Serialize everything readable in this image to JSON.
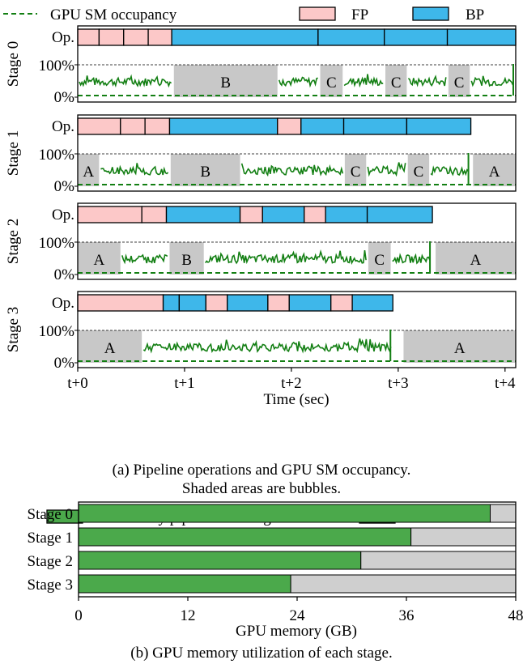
{
  "colors": {
    "fp": "#fcc8c8",
    "bp": "#3eb7ea",
    "bubble": "#c8c8c8",
    "occupancy": "#137f13",
    "utilized": "#4ba94b",
    "unutilized": "#cfcfcf"
  },
  "chart_data": [
    {
      "type": "timeline",
      "legend": {
        "placement": "top",
        "entries": [
          {
            "label": "GPU SM occupancy",
            "style": "dashed-line",
            "color": "#137f13"
          },
          {
            "label": "FP",
            "style": "box",
            "color": "#fcc8c8"
          },
          {
            "label": "BP",
            "style": "box",
            "color": "#3eb7ea"
          }
        ]
      },
      "xlabel": "Time (sec)",
      "xlim": [
        0,
        4.1
      ],
      "xticks": [
        0,
        1,
        2,
        3,
        4
      ],
      "xtick_labels": [
        "t+0",
        "t+1",
        "t+2",
        "t+3",
        "t+4"
      ],
      "op_row_label": "Op.",
      "occupancy_ticks": [
        "0%",
        "100%"
      ],
      "stages": [
        {
          "name": "Stage 0",
          "ops": [
            {
              "kind": "FP",
              "start": 0.0,
              "end": 0.2
            },
            {
              "kind": "FP",
              "start": 0.2,
              "end": 0.43
            },
            {
              "kind": "FP",
              "start": 0.43,
              "end": 0.66
            },
            {
              "kind": "FP",
              "start": 0.66,
              "end": 0.88
            },
            {
              "kind": "BP",
              "start": 0.88,
              "end": 2.25
            },
            {
              "kind": "BP",
              "start": 2.25,
              "end": 2.87
            },
            {
              "kind": "BP",
              "start": 2.87,
              "end": 3.46
            },
            {
              "kind": "BP",
              "start": 3.46,
              "end": 4.1
            }
          ],
          "bubbles": [
            {
              "label": "B",
              "start": 0.9,
              "end": 1.87
            },
            {
              "label": "C",
              "start": 2.27,
              "end": 2.48
            },
            {
              "label": "C",
              "start": 2.88,
              "end": 3.08
            },
            {
              "label": "C",
              "start": 3.47,
              "end": 3.67
            }
          ]
        },
        {
          "name": "Stage 1",
          "ops": [
            {
              "kind": "FP",
              "start": 0.0,
              "end": 0.4
            },
            {
              "kind": "FP",
              "start": 0.4,
              "end": 0.63
            },
            {
              "kind": "FP",
              "start": 0.63,
              "end": 0.86
            },
            {
              "kind": "BP",
              "start": 0.86,
              "end": 1.87
            },
            {
              "kind": "FP",
              "start": 1.87,
              "end": 2.09
            },
            {
              "kind": "BP",
              "start": 2.09,
              "end": 2.49
            },
            {
              "kind": "BP",
              "start": 2.49,
              "end": 3.08
            },
            {
              "kind": "BP",
              "start": 3.08,
              "end": 3.68
            }
          ],
          "bubbles": [
            {
              "label": "A",
              "start": 0.0,
              "end": 0.2
            },
            {
              "label": "B",
              "start": 0.87,
              "end": 1.52
            },
            {
              "label": "C",
              "start": 2.5,
              "end": 2.7
            },
            {
              "label": "C",
              "start": 3.09,
              "end": 3.29
            },
            {
              "label": "A",
              "start": 3.7,
              "end": 4.1
            }
          ]
        },
        {
          "name": "Stage 2",
          "ops": [
            {
              "kind": "FP",
              "start": 0.0,
              "end": 0.6
            },
            {
              "kind": "FP",
              "start": 0.6,
              "end": 0.83
            },
            {
              "kind": "BP",
              "start": 0.83,
              "end": 1.52
            },
            {
              "kind": "FP",
              "start": 1.52,
              "end": 1.73
            },
            {
              "kind": "BP",
              "start": 1.73,
              "end": 2.12
            },
            {
              "kind": "FP",
              "start": 2.12,
              "end": 2.32
            },
            {
              "kind": "BP",
              "start": 2.32,
              "end": 2.71
            },
            {
              "kind": "BP",
              "start": 2.71,
              "end": 3.32
            }
          ],
          "bubbles": [
            {
              "label": "A",
              "start": 0.0,
              "end": 0.4
            },
            {
              "label": "B",
              "start": 0.86,
              "end": 1.18
            },
            {
              "label": "C",
              "start": 2.72,
              "end": 2.93
            },
            {
              "label": "A",
              "start": 3.35,
              "end": 4.1
            }
          ]
        },
        {
          "name": "Stage 3",
          "ops": [
            {
              "kind": "FP",
              "start": 0.0,
              "end": 0.8
            },
            {
              "kind": "BP",
              "start": 0.8,
              "end": 0.95
            },
            {
              "kind": "BP",
              "start": 0.95,
              "end": 1.2
            },
            {
              "kind": "FP",
              "start": 1.2,
              "end": 1.4
            },
            {
              "kind": "BP",
              "start": 1.4,
              "end": 1.78
            },
            {
              "kind": "FP",
              "start": 1.78,
              "end": 1.98
            },
            {
              "kind": "BP",
              "start": 1.98,
              "end": 2.37
            },
            {
              "kind": "FP",
              "start": 2.37,
              "end": 2.57
            },
            {
              "kind": "BP",
              "start": 2.57,
              "end": 2.95
            }
          ],
          "bubbles": [
            {
              "label": "A",
              "start": 0.0,
              "end": 0.6
            },
            {
              "label": "A",
              "start": 3.05,
              "end": 4.1
            }
          ]
        }
      ]
    },
    {
      "type": "bar",
      "orientation": "horizontal",
      "stacked": true,
      "legend": {
        "placement": "top",
        "entries": [
          {
            "label": "Utilized by pipeline training",
            "color": "#4ba94b"
          },
          {
            "label": "Unutilized",
            "color": "#cfcfcf"
          }
        ]
      },
      "categories": [
        "Stage 0",
        "Stage 1",
        "Stage 2",
        "Stage 3"
      ],
      "series": [
        {
          "name": "Utilized by pipeline training",
          "values": [
            45.2,
            36.5,
            31.0,
            23.3
          ]
        },
        {
          "name": "Unutilized",
          "values": [
            2.8,
            11.5,
            17.0,
            24.7
          ]
        }
      ],
      "xlabel": "GPU memory (GB)",
      "xlim": [
        0,
        48
      ],
      "xticks": [
        0,
        12,
        24,
        36,
        48
      ]
    }
  ],
  "captions": {
    "a_line1": "(a) Pipeline operations and GPU SM occupancy.",
    "a_line2": "Shaded areas are bubbles.",
    "b": "(b) GPU memory utilization of each stage."
  }
}
